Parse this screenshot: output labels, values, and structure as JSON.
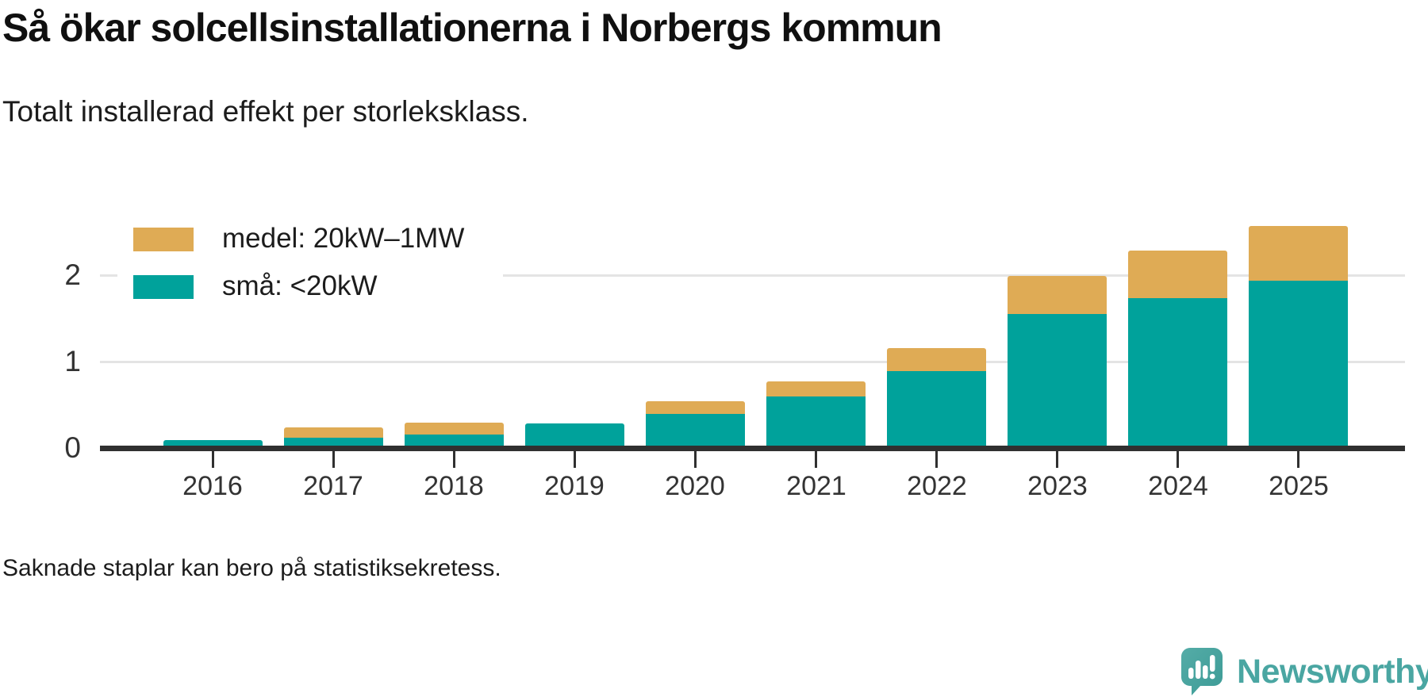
{
  "title": "Så ökar solcellsinstallationerna i Norbergs kommun",
  "subtitle": "Totalt installerad effekt per storleksklass.",
  "footnote": "Saknade staplar kan bero på statistiksekretess.",
  "brand": {
    "name": "Newsworthy",
    "wordmark_color": "#4aa6a2",
    "icon": "newsworthy-speech-bubble-bar-chart-icon",
    "icon_color": "#46a49f"
  },
  "colors": {
    "medel": "#dfab55",
    "sma": "#00a29b",
    "axis": "#303030",
    "grid": "#e4e4e4"
  },
  "chart_data": {
    "type": "bar",
    "stacked": true,
    "title": "Så ökar solcellsinstallationerna i Norbergs kommun",
    "subtitle": "Totalt installerad effekt per storleksklass.",
    "categories": [
      "2016",
      "2017",
      "2018",
      "2019",
      "2020",
      "2021",
      "2022",
      "2023",
      "2024",
      "2025"
    ],
    "series": [
      {
        "name": "medel: 20kW–1MW",
        "color": "#dfab55",
        "values": [
          0,
          0.12,
          0.13,
          0,
          0.15,
          0.17,
          0.27,
          0.44,
          0.55,
          0.63
        ]
      },
      {
        "name": "små: <20kW",
        "color": "#00a29b",
        "values": [
          0.09,
          0.12,
          0.16,
          0.28,
          0.39,
          0.6,
          0.89,
          1.55,
          1.73,
          1.94
        ]
      }
    ],
    "totals": [
      0.09,
      0.24,
      0.29,
      0.28,
      0.54,
      0.77,
      1.16,
      1.99,
      2.28,
      2.57
    ],
    "xlabel": "",
    "ylabel": "",
    "yticks": [
      0,
      1,
      2
    ],
    "ylim": [
      0,
      2.65
    ],
    "grid": "horizontal",
    "legend_position": "top-left"
  }
}
